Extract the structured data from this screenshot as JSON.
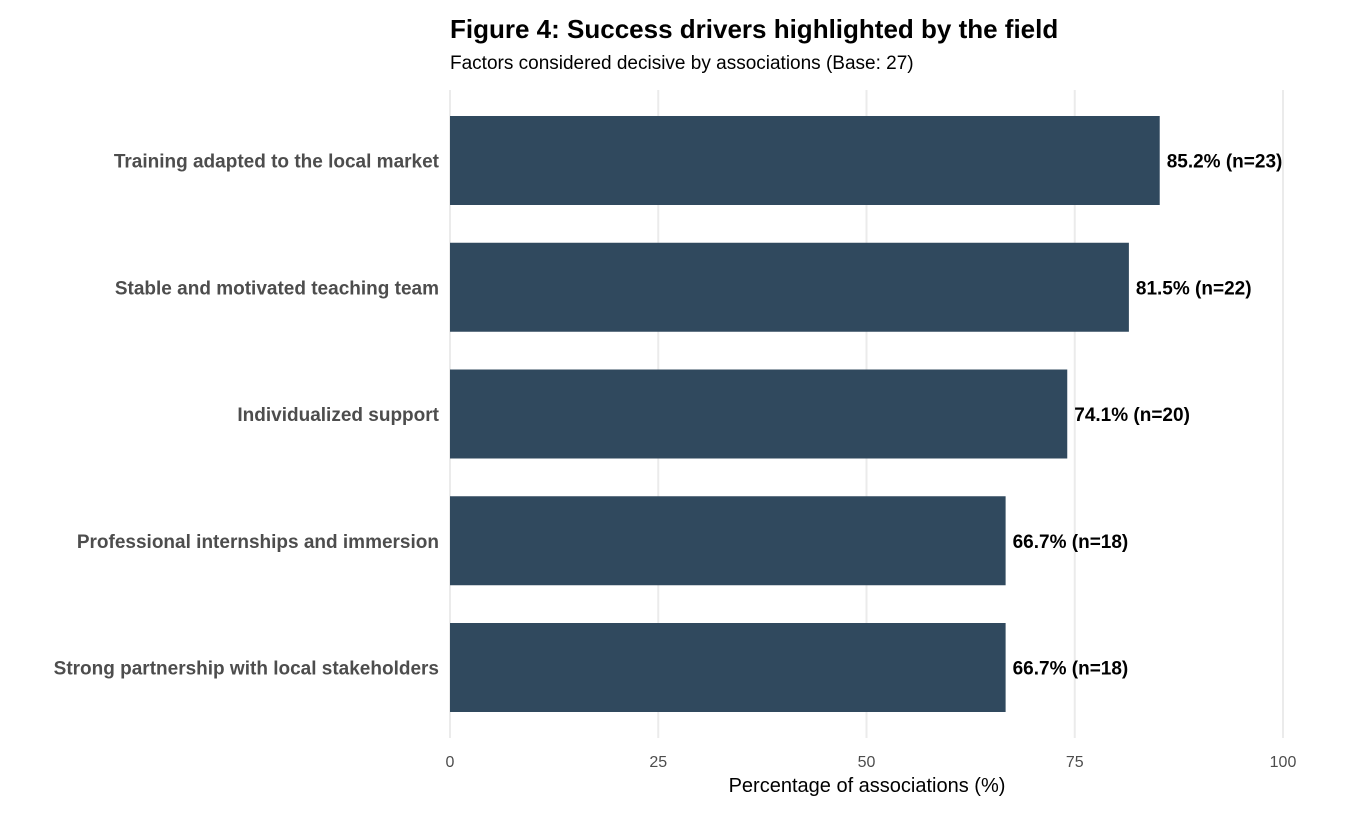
{
  "chart_data": {
    "type": "bar",
    "orientation": "horizontal",
    "title": "Figure 4: Success drivers highlighted by the field",
    "subtitle": "Factors considered decisive by associations (Base: 27)",
    "xlabel": "Percentage of associations (%)",
    "ylabel": "",
    "xlim": [
      0,
      100
    ],
    "x_ticks": [
      0,
      25,
      50,
      75,
      100
    ],
    "grid": true,
    "categories": [
      "Training adapted to the local market",
      "Stable and motivated teaching team",
      "Individualized support",
      "Professional internships and immersion",
      "Strong partnership with local stakeholders"
    ],
    "values": [
      85.2,
      81.5,
      74.1,
      66.7,
      66.7
    ],
    "counts": [
      23,
      22,
      20,
      18,
      18
    ],
    "data_labels": [
      "85.2% (n=23)",
      "81.5% (n=22)",
      "74.1% (n=20)",
      "66.7% (n=18)",
      "66.7% (n=18)"
    ],
    "bar_color": "#30495e",
    "legend": "none"
  }
}
